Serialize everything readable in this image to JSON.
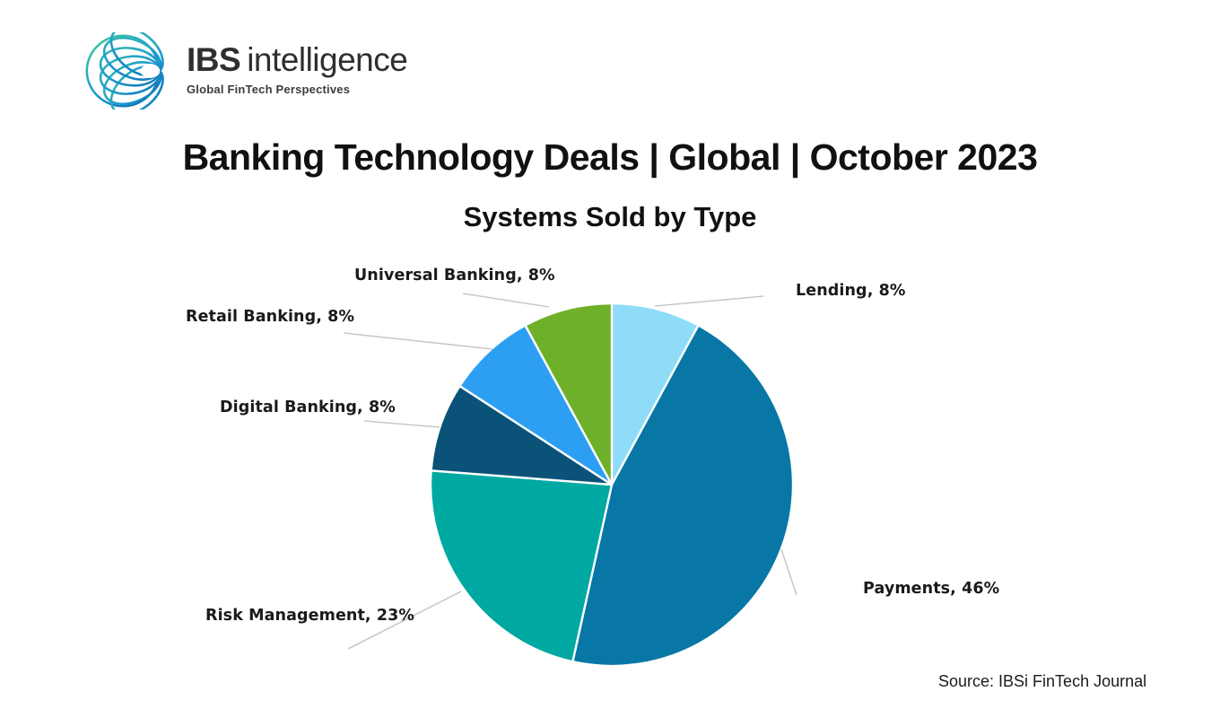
{
  "logo": {
    "brand_bold": "IBS",
    "brand_regular": "intelligence",
    "tagline": "Global FinTech Perspectives"
  },
  "header": {
    "title": "Banking Technology Deals | Global | October 2023",
    "subtitle": "Systems Sold by Type"
  },
  "source": "Source: IBSi FinTech Journal",
  "chart_data": {
    "type": "pie",
    "title": "Systems Sold by Type",
    "unit": "percent",
    "direction": "clockwise",
    "start_angle_deg": 0,
    "legend": "none",
    "label_style": "outside-callout",
    "callout_line_color": "#c9c9c9",
    "slice_border_color": "#ffffff",
    "slices": [
      {
        "name": "Lending",
        "value": 8,
        "label": "Lending, 8%",
        "color": "#8edcf8"
      },
      {
        "name": "Payments",
        "value": 46,
        "label": "Payments, 46%",
        "color": "#0877a6"
      },
      {
        "name": "Risk Management",
        "value": 23,
        "label": "Risk Management, 23%",
        "color": "#00a8a2"
      },
      {
        "name": "Digital Banking",
        "value": 8,
        "label": "Digital Banking, 8%",
        "color": "#0b5278"
      },
      {
        "name": "Retail Banking",
        "value": 8,
        "label": "Retail Banking, 8%",
        "color": "#2d9ff2"
      },
      {
        "name": "Universal Banking",
        "value": 8,
        "label": "Universal Banking, 8%",
        "color": "#6fb02a"
      }
    ]
  }
}
